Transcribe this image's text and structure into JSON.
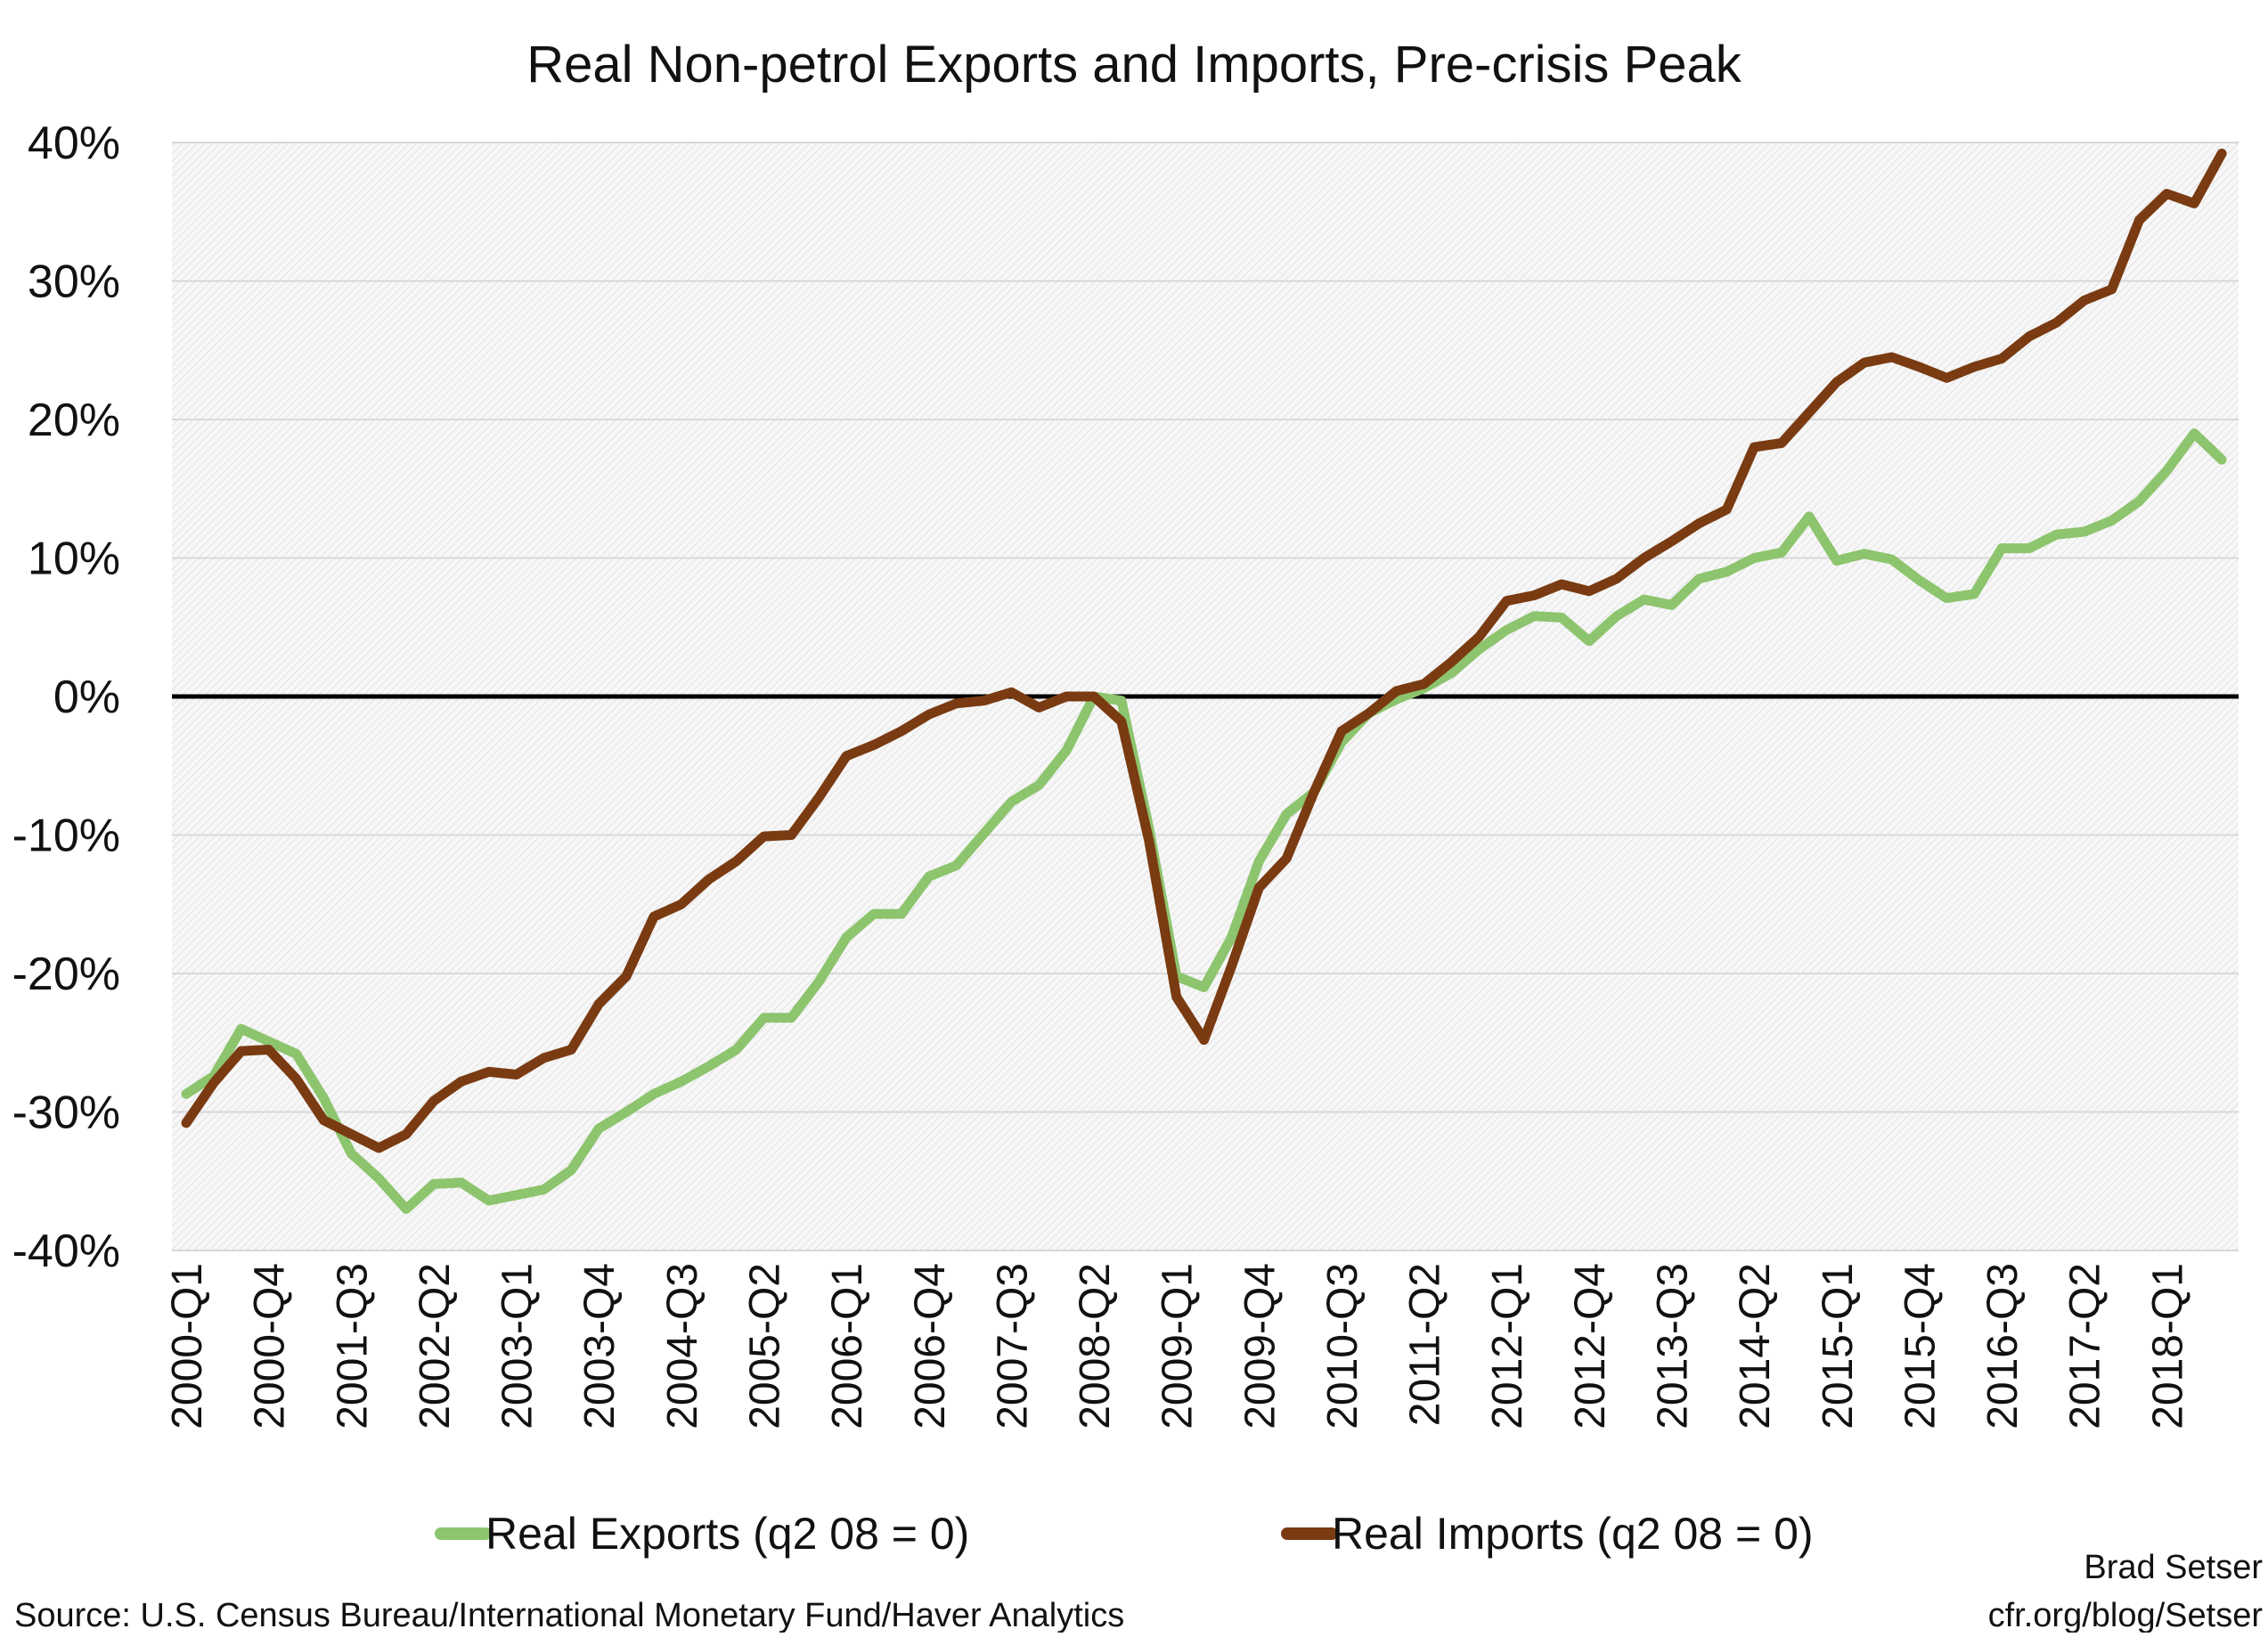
{
  "chart_data": {
    "type": "line",
    "title": "Real Non-petrol Exports and Imports, Pre-crisis Peak",
    "xlabel": "",
    "ylabel": "",
    "ylim": [
      -40,
      40
    ],
    "yticks": [
      40,
      30,
      20,
      10,
      0,
      -10,
      -20,
      -30,
      -40
    ],
    "ytick_labels": [
      "40%",
      "30%",
      "20%",
      "10%",
      "0%",
      "-10%",
      "-20%",
      "-30%",
      "-40%"
    ],
    "x_start_year": 2000,
    "xtick_labels": [
      "2000-Q1",
      "2000-Q4",
      "2001-Q3",
      "2002-Q2",
      "2003-Q1",
      "2003-Q4",
      "2004-Q3",
      "2005-Q2",
      "2006-Q1",
      "2006-Q4",
      "2007-Q3",
      "2008-Q2",
      "2009-Q1",
      "2009-Q4",
      "2010-Q3",
      "2011-Q2",
      "2012-Q1",
      "2012-Q4",
      "2013-Q3",
      "2014-Q2",
      "2015-Q1",
      "2015-Q4",
      "2016-Q3",
      "2017-Q2",
      "2018-Q1"
    ],
    "grid": true,
    "legend_position": "bottom",
    "series": [
      {
        "name": "Real Exports (q2 08 = 0)",
        "color": "#8dc46e",
        "values": [
          -28.7,
          -27.4,
          -24,
          -24.9,
          -25.8,
          -29,
          -33,
          -34.8,
          -37,
          -35.2,
          -35.1,
          -36.4,
          -36,
          -35.6,
          -34.2,
          -31.2,
          -30,
          -28.7,
          -27.8,
          -26.7,
          -25.5,
          -23.2,
          -23.2,
          -20.6,
          -17.4,
          -15.7,
          -15.7,
          -13,
          -12.2,
          -9.9,
          -7.6,
          -6.4,
          -3.9,
          0,
          -0.3,
          -9.5,
          -20.2,
          -21,
          -17.4,
          -11.9,
          -8.5,
          -6.9,
          -3.3,
          -1.2,
          -0.2,
          0.6,
          1.7,
          3.4,
          4.8,
          5.8,
          5.7,
          4,
          5.8,
          7,
          6.6,
          8.5,
          9,
          10,
          10.4,
          13,
          9.8,
          10.3,
          9.9,
          8.4,
          7.1,
          7.4,
          10.7,
          10.7,
          11.7,
          11.9,
          12.7,
          14.1,
          16.3,
          19,
          17.1
        ]
      },
      {
        "name": "Real Imports (q2 08 = 0)",
        "color": "#7a3b12",
        "values": [
          -30.8,
          -27.9,
          -25.6,
          -25.5,
          -27.6,
          -30.6,
          -31.6,
          -32.6,
          -31.6,
          -29.2,
          -27.8,
          -27.1,
          -27.3,
          -26.1,
          -25.5,
          -22.2,
          -20.2,
          -15.9,
          -15,
          -13.2,
          -11.9,
          -10.1,
          -10,
          -7.3,
          -4.3,
          -3.5,
          -2.5,
          -1.3,
          -0.5,
          -0.3,
          0.3,
          -0.8,
          0,
          0,
          -1.8,
          -10.4,
          -21.7,
          -24.8,
          -19.5,
          -13.8,
          -11.7,
          -6.9,
          -2.5,
          -1.2,
          0.4,
          0.9,
          2.5,
          4.3,
          6.9,
          7.3,
          8.1,
          7.6,
          8.5,
          10,
          11.2,
          12.5,
          13.5,
          18,
          18.3,
          20.5,
          22.7,
          24.1,
          24.5,
          23.8,
          23,
          23.8,
          24.4,
          26,
          27,
          28.6,
          29.4,
          34.4,
          36.3,
          35.6,
          39.2
        ]
      }
    ]
  },
  "source": "Source: U.S. Census Bureau/International Monetary Fund/Haver Analytics",
  "credit": {
    "author": "Brad Setser",
    "site": "cfr.org/blog/Setser"
  }
}
